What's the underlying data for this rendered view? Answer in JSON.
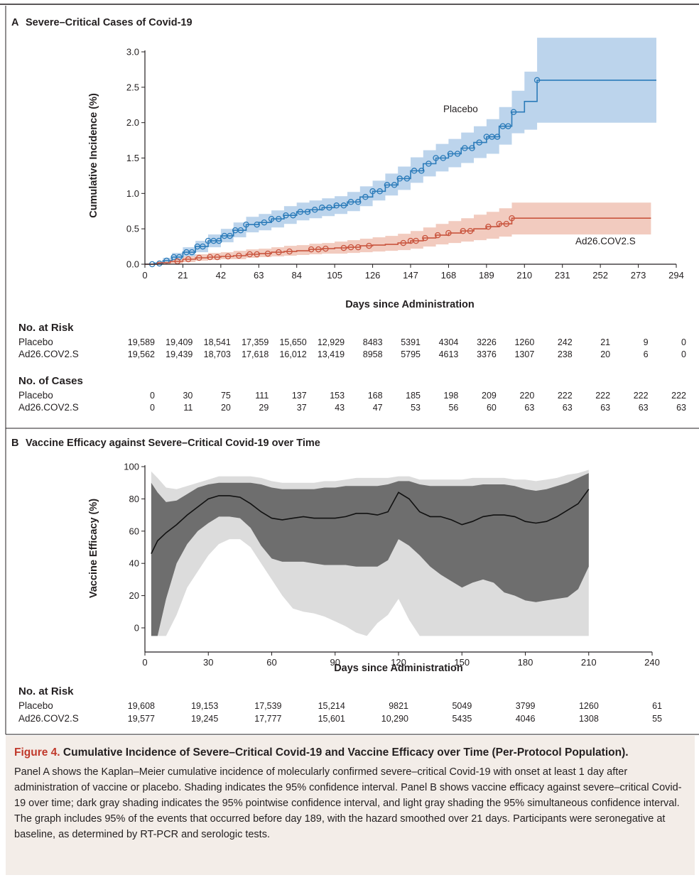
{
  "panel_a": {
    "letter": "A",
    "title": "Severe–Critical Cases of Covid-19",
    "risk_heading": "No. at Risk",
    "cases_heading": "No. of Cases",
    "risk_rows": [
      {
        "label": "Placebo",
        "values": [
          "19,589",
          "19,409",
          "18,541",
          "17,359",
          "15,650",
          "12,929",
          "8483",
          "5391",
          "4304",
          "3226",
          "1260",
          "242",
          "21",
          "9",
          "0"
        ]
      },
      {
        "label": "Ad26.COV2.S",
        "values": [
          "19,562",
          "19,439",
          "18,703",
          "17,618",
          "16,012",
          "13,419",
          "8958",
          "5795",
          "4613",
          "3376",
          "1307",
          "238",
          "20",
          "6",
          "0"
        ]
      }
    ],
    "case_rows": [
      {
        "label": "Placebo",
        "values": [
          "0",
          "30",
          "75",
          "111",
          "137",
          "153",
          "168",
          "185",
          "198",
          "209",
          "220",
          "222",
          "222",
          "222",
          "222"
        ]
      },
      {
        "label": "Ad26.COV2.S",
        "values": [
          "0",
          "11",
          "20",
          "29",
          "37",
          "43",
          "47",
          "53",
          "56",
          "60",
          "63",
          "63",
          "63",
          "63",
          "63"
        ]
      }
    ]
  },
  "panel_b": {
    "letter": "B",
    "title": "Vaccine Efficacy against Severe–Critical Covid-19 over Time",
    "risk_heading": "No. at Risk",
    "risk_rows": [
      {
        "label": "Placebo",
        "values": [
          "19,608",
          "19,153",
          "17,539",
          "15,214",
          "9821",
          "5049",
          "3799",
          "1260",
          "61"
        ]
      },
      {
        "label": "Ad26.COV2.S",
        "values": [
          "19,577",
          "19,245",
          "17,777",
          "15,601",
          "10,290",
          "5435",
          "4046",
          "1308",
          "55"
        ]
      }
    ]
  },
  "caption": {
    "figure_label": "Figure 4.",
    "title": "Cumulative Incidence of Severe–Critical Covid-19 and Vaccine Efficacy over Time (Per-Protocol Population).",
    "body": "Panel A shows the Kaplan–Meier cumulative incidence of molecularly confirmed severe–critical Covid-19 with onset at least 1 day after administration of vaccine or placebo. Shading indicates the 95% confidence interval. Panel B shows vaccine efficacy against severe–critical Covid-19 over time; dark gray shading indicates the 95% pointwise confidence interval, and light gray shading the 95% simultaneous confidence interval. The graph includes 95% of the events that occurred before day 189, with the hazard smoothed over 21 days. Participants were seronegative at baseline, as determined by RT-PCR and serologic tests."
  },
  "colors": {
    "placebo": "#2b7bb9",
    "placebo_ci": "#bcd4ec",
    "vaccine": "#c9553f",
    "vaccine_ci": "#f2cbbf",
    "pointwise_ci": "#6e6e6e",
    "simultaneous_ci": "#dcdcdc",
    "caption_bg": "#f3ede8",
    "caption_accent": "#c0392b"
  },
  "chart_data": [
    {
      "type": "line",
      "title": "Severe–Critical Cases of Covid-19",
      "xlabel": "Days since Administration",
      "ylabel": "Cumulative Incidence (%)",
      "xlim": [
        0,
        294
      ],
      "ylim": [
        0,
        3.0
      ],
      "xticks": [
        0,
        21,
        42,
        63,
        84,
        105,
        126,
        147,
        168,
        189,
        210,
        231,
        252,
        273,
        294
      ],
      "yticks": [
        "0.0",
        "0.5",
        "1.0",
        "1.5",
        "2.0",
        "2.5",
        "3.0"
      ],
      "grid": false,
      "series": [
        {
          "name": "Placebo",
          "step": true,
          "x": [
            0,
            5,
            10,
            15,
            21,
            28,
            35,
            42,
            49,
            56,
            63,
            70,
            77,
            84,
            91,
            98,
            105,
            112,
            119,
            126,
            133,
            140,
            147,
            154,
            161,
            168,
            175,
            182,
            189,
            196,
            203,
            210,
            217,
            224,
            231,
            252,
            273,
            283
          ],
          "y": [
            0,
            0.01,
            0.05,
            0.1,
            0.17,
            0.25,
            0.33,
            0.4,
            0.48,
            0.56,
            0.59,
            0.64,
            0.69,
            0.74,
            0.77,
            0.8,
            0.83,
            0.88,
            0.95,
            1.03,
            1.12,
            1.21,
            1.32,
            1.42,
            1.5,
            1.56,
            1.64,
            1.72,
            1.8,
            1.95,
            2.15,
            2.3,
            2.6,
            2.6,
            2.6,
            2.6,
            2.6,
            2.6
          ],
          "ci_lower": [
            0,
            0.0,
            0.02,
            0.05,
            0.1,
            0.17,
            0.24,
            0.31,
            0.38,
            0.45,
            0.48,
            0.52,
            0.57,
            0.62,
            0.65,
            0.68,
            0.71,
            0.75,
            0.82,
            0.9,
            0.97,
            1.05,
            1.15,
            1.24,
            1.31,
            1.37,
            1.43,
            1.5,
            1.56,
            1.69,
            1.85,
            1.9,
            2.0,
            2.0,
            2.0,
            2.0,
            2.0,
            2.0
          ],
          "ci_upper": [
            0,
            0.03,
            0.09,
            0.16,
            0.24,
            0.33,
            0.42,
            0.5,
            0.59,
            0.67,
            0.71,
            0.76,
            0.82,
            0.87,
            0.9,
            0.93,
            0.96,
            1.02,
            1.1,
            1.18,
            1.28,
            1.38,
            1.51,
            1.61,
            1.7,
            1.77,
            1.86,
            1.95,
            2.05,
            2.22,
            2.45,
            2.72,
            3.2,
            3.2,
            3.2,
            3.2,
            3.2,
            3.2
          ],
          "censor_x": [
            4,
            8,
            12,
            16,
            19,
            23,
            26,
            29,
            32,
            35,
            38,
            41,
            44,
            47,
            50,
            53,
            56,
            62,
            66,
            70,
            74,
            78,
            82,
            86,
            90,
            94,
            98,
            102,
            106,
            110,
            114,
            118,
            122,
            126,
            130,
            134,
            138,
            141,
            145,
            149,
            153,
            157,
            161,
            165,
            169,
            173,
            177,
            181,
            185,
            189,
            192,
            195,
            198,
            201,
            204,
            217
          ]
        },
        {
          "name": "Ad26.COV2.S",
          "step": true,
          "x": [
            0,
            7,
            14,
            21,
            28,
            35,
            42,
            49,
            56,
            63,
            70,
            77,
            84,
            91,
            98,
            105,
            112,
            119,
            126,
            133,
            140,
            147,
            154,
            161,
            168,
            175,
            182,
            189,
            196,
            203,
            210,
            217,
            231,
            252,
            273,
            280
          ],
          "y": [
            0,
            0.02,
            0.04,
            0.07,
            0.09,
            0.1,
            0.11,
            0.12,
            0.14,
            0.15,
            0.17,
            0.18,
            0.19,
            0.21,
            0.22,
            0.23,
            0.24,
            0.26,
            0.27,
            0.28,
            0.3,
            0.33,
            0.37,
            0.41,
            0.44,
            0.47,
            0.5,
            0.53,
            0.57,
            0.65,
            0.65,
            0.65,
            0.65,
            0.65,
            0.65,
            0.65
          ],
          "ci_lower": [
            0,
            0.0,
            0.01,
            0.03,
            0.05,
            0.06,
            0.07,
            0.07,
            0.09,
            0.1,
            0.11,
            0.12,
            0.13,
            0.14,
            0.15,
            0.15,
            0.16,
            0.17,
            0.18,
            0.19,
            0.2,
            0.22,
            0.25,
            0.28,
            0.3,
            0.32,
            0.34,
            0.36,
            0.39,
            0.42,
            0.42,
            0.42,
            0.42,
            0.42,
            0.42,
            0.42
          ],
          "ci_upper": [
            0,
            0.04,
            0.07,
            0.11,
            0.14,
            0.16,
            0.17,
            0.19,
            0.21,
            0.22,
            0.24,
            0.26,
            0.27,
            0.29,
            0.3,
            0.32,
            0.34,
            0.36,
            0.38,
            0.4,
            0.43,
            0.47,
            0.52,
            0.57,
            0.61,
            0.65,
            0.7,
            0.74,
            0.79,
            0.87,
            0.87,
            0.87,
            0.87,
            0.87,
            0.87,
            0.87
          ],
          "censor_x": [
            18,
            24,
            30,
            36,
            40,
            46,
            52,
            58,
            62,
            68,
            74,
            80,
            92,
            96,
            100,
            110,
            114,
            118,
            124,
            143,
            147,
            150,
            155,
            162,
            168,
            176,
            180,
            190,
            196,
            200,
            203
          ]
        }
      ]
    },
    {
      "type": "area",
      "title": "Vaccine Efficacy against Severe–Critical Covid-19 over Time",
      "xlabel": "Days since Administration",
      "ylabel": "Vaccine Efficacy (%)",
      "xlim": [
        0,
        240
      ],
      "ylim": [
        0,
        100
      ],
      "xticks": [
        0,
        30,
        60,
        90,
        120,
        150,
        180,
        210,
        240
      ],
      "yticks": [
        0,
        20,
        40,
        60,
        80,
        100
      ],
      "grid": false,
      "x": [
        3,
        6,
        10,
        15,
        20,
        25,
        30,
        35,
        40,
        45,
        50,
        55,
        60,
        65,
        70,
        75,
        80,
        85,
        90,
        95,
        100,
        105,
        110,
        115,
        120,
        125,
        130,
        135,
        140,
        145,
        150,
        155,
        160,
        165,
        170,
        175,
        180,
        185,
        190,
        195,
        200,
        205,
        210
      ],
      "series": [
        {
          "name": "",
          "values": [
            46,
            54,
            59,
            64,
            70,
            75,
            80,
            82,
            82,
            81,
            77,
            72,
            68,
            67,
            68,
            69,
            68,
            68,
            68,
            69,
            71,
            71,
            70,
            72,
            84,
            80,
            72,
            69,
            69,
            67,
            64,
            66,
            69,
            70,
            70,
            69,
            66,
            65,
            66,
            69,
            73,
            77,
            86
          ]
        },
        {
          "name": "",
          "values": [
            -5,
            -5,
            18,
            40,
            52,
            60,
            65,
            69,
            69,
            68,
            62,
            51,
            43,
            41,
            41,
            41,
            40,
            39,
            39,
            39,
            38,
            38,
            38,
            42,
            55,
            51,
            45,
            38,
            33,
            29,
            25,
            28,
            30,
            28,
            22,
            20,
            17,
            16,
            17,
            18,
            19,
            24,
            38
          ]
        },
        {
          "name": "",
          "values": [
            90,
            84,
            78,
            79,
            83,
            87,
            89,
            90,
            90,
            90,
            90,
            89,
            87,
            86,
            86,
            86,
            86,
            87,
            87,
            88,
            88,
            88,
            88,
            89,
            91,
            91,
            89,
            88,
            88,
            88,
            88,
            88,
            89,
            89,
            89,
            88,
            86,
            85,
            86,
            88,
            90,
            93,
            96
          ]
        },
        {
          "name": "",
          "values": [
            -5,
            -5,
            -5,
            8,
            25,
            35,
            45,
            52,
            55,
            55,
            50,
            40,
            30,
            20,
            12,
            10,
            9,
            7,
            4,
            1,
            -3,
            -5,
            3,
            8,
            18,
            5,
            -5,
            -5,
            -5,
            -5,
            -5,
            -5,
            -5,
            -5,
            -5,
            -5,
            -5,
            -5,
            -5,
            -5,
            -5,
            -5,
            -5
          ]
        },
        {
          "name": "",
          "values": [
            97,
            93,
            87,
            86,
            88,
            90,
            92,
            94,
            94,
            94,
            94,
            93,
            91,
            90,
            90,
            90,
            90,
            91,
            91,
            92,
            93,
            93,
            93,
            93,
            94,
            94,
            92,
            92,
            92,
            92,
            92,
            93,
            93,
            93,
            93,
            92,
            92,
            91,
            92,
            93,
            95,
            96,
            98
          ]
        }
      ]
    }
  ]
}
